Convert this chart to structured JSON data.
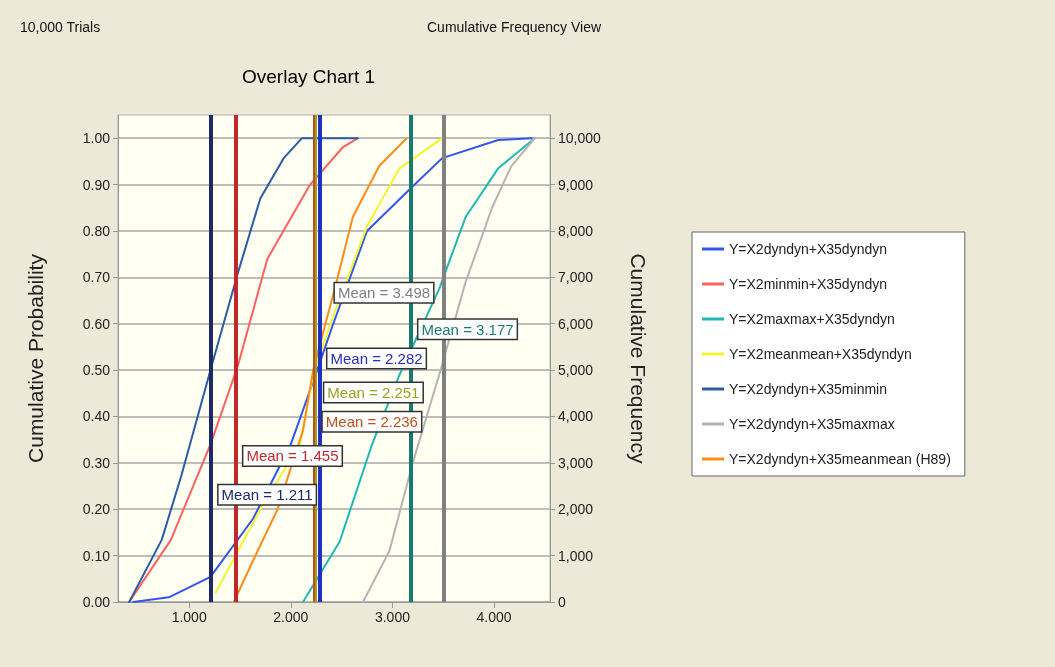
{
  "chart_data": {
    "type": "line",
    "title": "Overlay Chart 1",
    "annotations": [
      "10,000 Trials",
      "Cumulative Frequency View"
    ],
    "ylabel": "Cumulative Probability",
    "y2label": "Cumulative Frequency",
    "xlim": [
      0.3,
      4.55
    ],
    "xticks": [
      {
        "value": 1,
        "label": "1.000"
      },
      {
        "value": 2,
        "label": "2.000"
      },
      {
        "value": 3,
        "label": "3.000"
      },
      {
        "value": 4,
        "label": "4.000"
      }
    ],
    "ylim": [
      0,
      1.05
    ],
    "yticks": [
      {
        "value": 0,
        "label": "0.00"
      },
      {
        "value": 0.1,
        "label": "0.10"
      },
      {
        "value": 0.2,
        "label": "0.20"
      },
      {
        "value": 0.3,
        "label": "0.30"
      },
      {
        "value": 0.4,
        "label": "0.40"
      },
      {
        "value": 0.5,
        "label": "0.50"
      },
      {
        "value": 0.6,
        "label": "0.60"
      },
      {
        "value": 0.7,
        "label": "0.70"
      },
      {
        "value": 0.8,
        "label": "0.80"
      },
      {
        "value": 0.9,
        "label": "0.90"
      },
      {
        "value": 1,
        "label": "1.00"
      }
    ],
    "y2lim": [
      0,
      10500
    ],
    "y2ticks": [
      0,
      {
        "value": 1000,
        "label": "1,000"
      },
      {
        "value": 2000,
        "label": "2,000"
      },
      {
        "value": 3000,
        "label": "3,000"
      },
      {
        "value": 4000,
        "label": "4,000"
      },
      {
        "value": 5000,
        "label": "5,000"
      },
      {
        "value": 6000,
        "label": "6,000"
      },
      {
        "value": 7000,
        "label": "7,000"
      },
      {
        "value": 8000,
        "label": "8,000"
      },
      {
        "value": 9000,
        "label": "9,000"
      },
      {
        "value": 10000,
        "label": "10,000"
      }
    ],
    "grid": "y",
    "legend": "right",
    "marker": "none",
    "line_style": "solid",
    "series": [
      {
        "name": "Y=X2dyndyn+X35dyndyn",
        "color": "#3355ee",
        "x": [
          0.45,
          0.8,
          1.21,
          1.63,
          2.0,
          2.26,
          2.41,
          2.75,
          3.17,
          3.49,
          4.04,
          4.37
        ],
        "values": [
          0,
          0.01,
          0.054,
          0.18,
          0.34,
          0.5,
          0.595,
          0.8,
          0.89,
          0.957,
          0.996,
          1
        ]
      },
      {
        "name": "Y=X2minmin+X35dyndyn",
        "color": "#ff6060",
        "x": [
          0.41,
          0.82,
          1.21,
          1.48,
          1.77,
          2.19,
          2.51,
          2.66
        ],
        "values": [
          0,
          0.134,
          0.34,
          0.51,
          0.74,
          0.9,
          0.98,
          1
        ]
      },
      {
        "name": "Y=X2maxmax+X35dyndyn",
        "color": "#20b8b0",
        "x": [
          2.12,
          2.48,
          2.8,
          3.07,
          3.46,
          3.72,
          4.04,
          4.4
        ],
        "values": [
          0,
          0.13,
          0.34,
          0.49,
          0.675,
          0.83,
          0.935,
          1
        ]
      },
      {
        "name": "Y=X2meanmean+X35dyndyn",
        "color": "#f4f430",
        "x": [
          1.26,
          1.7,
          2.09,
          2.22,
          2.39,
          2.75,
          3.07,
          3.49
        ],
        "values": [
          0.02,
          0.2,
          0.34,
          0.49,
          0.6,
          0.81,
          0.935,
          1
        ]
      },
      {
        "name": "Y=X2dyndyn+X35minmin",
        "color": "#2a5caa",
        "x": [
          0.41,
          0.73,
          0.92,
          1.21,
          1.48,
          1.7,
          1.93,
          2.11,
          2.66
        ],
        "values": [
          0,
          0.134,
          0.27,
          0.5,
          0.71,
          0.87,
          0.957,
          1,
          1
        ]
      },
      {
        "name": "Y=X2dyndyn+X35maxmax",
        "color": "#b4b4b4",
        "x": [
          2.71,
          2.97,
          3.2,
          3.46,
          3.72,
          3.98,
          4.17,
          4.4
        ],
        "values": [
          0,
          0.11,
          0.3,
          0.49,
          0.69,
          0.85,
          0.94,
          1
        ]
      },
      {
        "name": "Y=X2dyndyn+X35meanmean (H89)",
        "color": "#ff8c1a",
        "x": [
          1.44,
          1.63,
          1.87,
          2.12,
          2.22,
          2.45,
          2.61,
          2.87,
          3.14
        ],
        "values": [
          0,
          0.09,
          0.2,
          0.37,
          0.5,
          0.69,
          0.83,
          0.94,
          1
        ]
      }
    ],
    "ref_lines": [
      {
        "axis": "x",
        "value": 1.211,
        "label": "Mean = 1.211",
        "color": "#1c2a6a"
      },
      {
        "axis": "x",
        "value": 1.455,
        "label": "Mean = 1.455",
        "color": "#c0282c"
      },
      {
        "axis": "x",
        "value": 2.236,
        "label": "Mean = 2.236",
        "color": "#c0501a"
      },
      {
        "axis": "x",
        "value": 2.251,
        "label": "Mean = 2.251",
        "color": "#9aa020"
      },
      {
        "axis": "x",
        "value": 2.282,
        "label": "Mean = 2.282",
        "color": "#2030c0"
      },
      {
        "axis": "x",
        "value": 3.177,
        "label": "Mean = 3.177",
        "color": "#1a7a70"
      },
      {
        "axis": "x",
        "value": 3.498,
        "label": "Mean = 3.498",
        "color": "#808080"
      }
    ]
  }
}
